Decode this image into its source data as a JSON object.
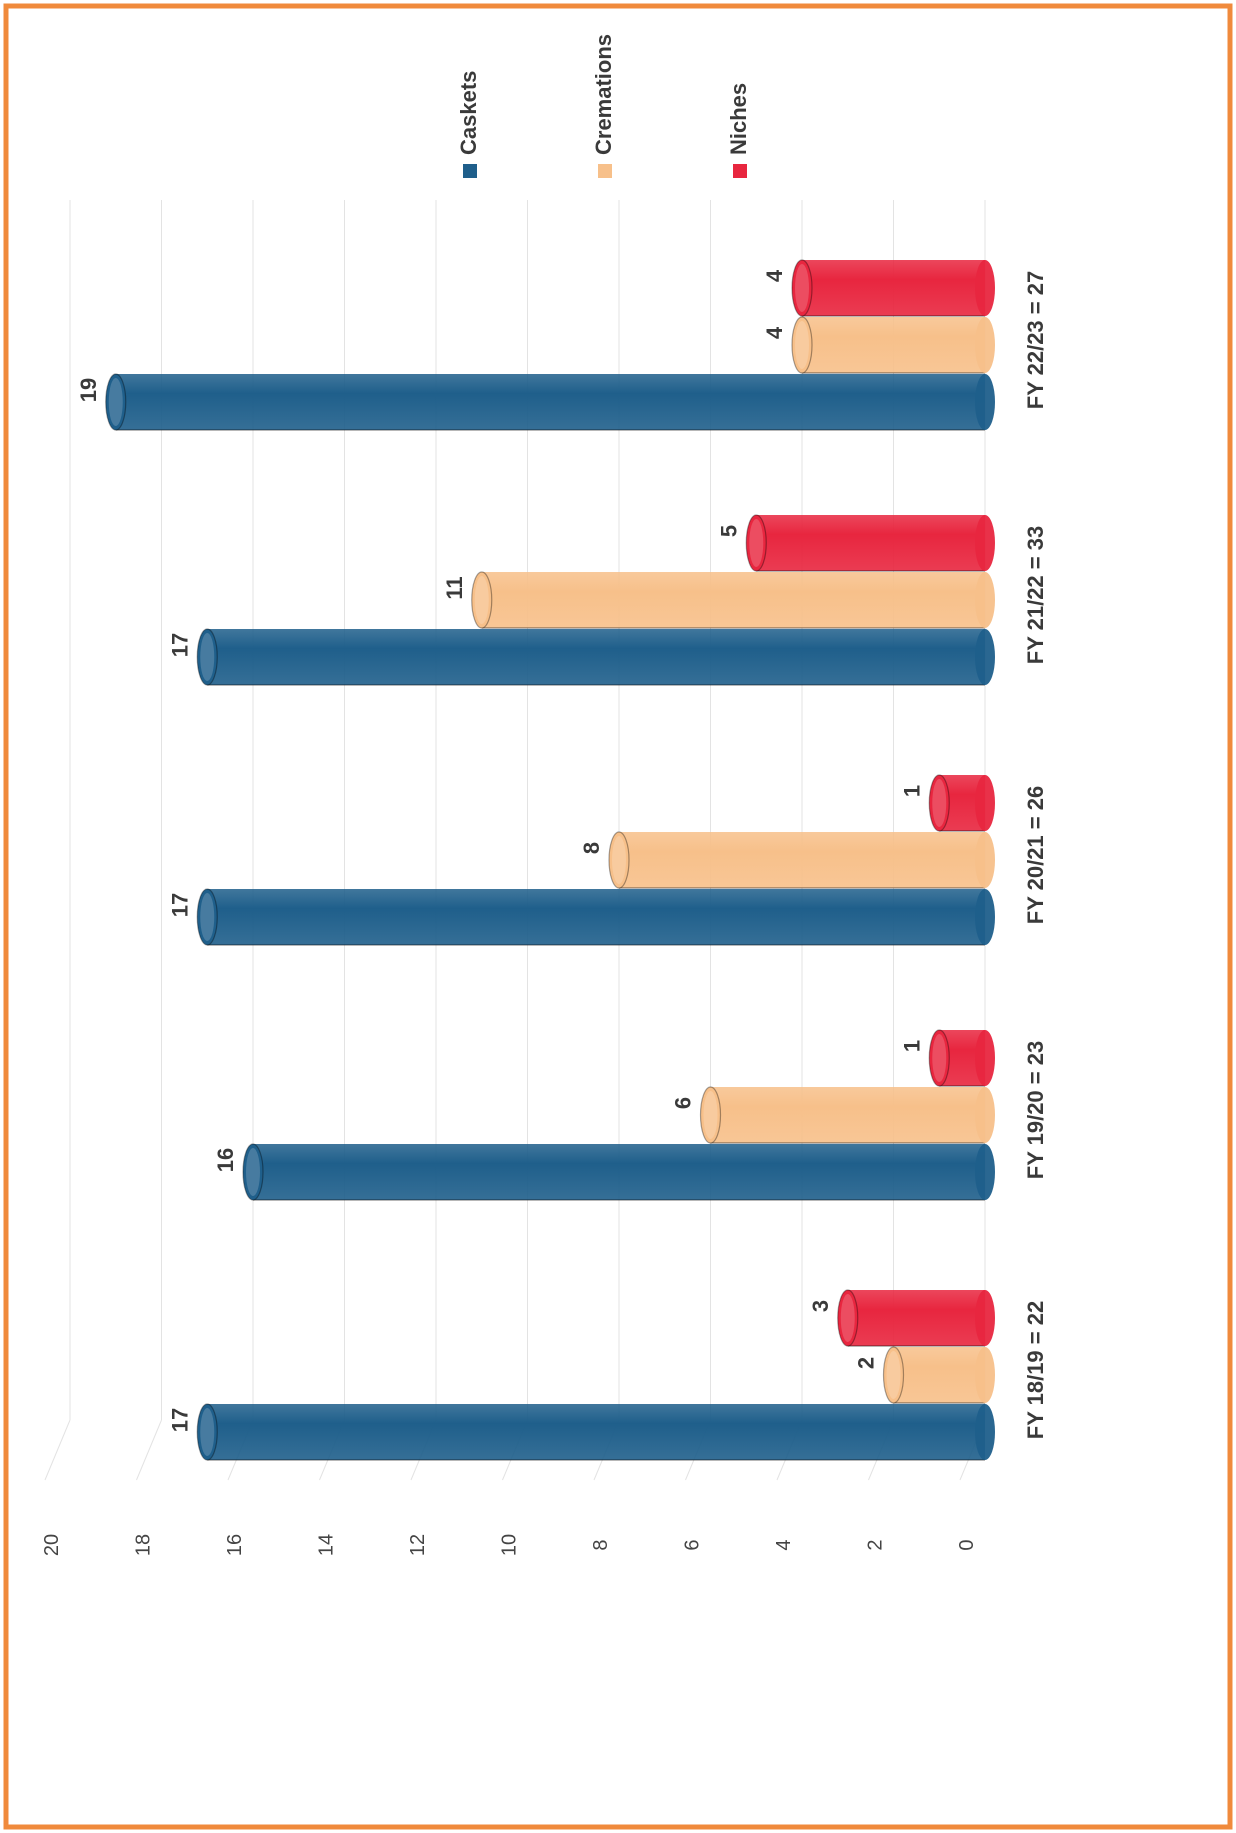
{
  "chart_data": {
    "type": "bar",
    "orientation": "horizontal-3d-cylinder",
    "categories": [
      "FY 18/19 = 22",
      "FY 19/20 = 23",
      "FY 20/21 = 26",
      "FY 21/22 = 33",
      "FY 22/23 = 27"
    ],
    "series": [
      {
        "name": "Caskets",
        "color": "#1f5f8b",
        "values": [
          17,
          16,
          17,
          17,
          19
        ]
      },
      {
        "name": "Cremations",
        "color": "#f7c08a",
        "values": [
          2,
          6,
          8,
          11,
          4
        ]
      },
      {
        "name": "Niches",
        "color": "#e8263f",
        "values": [
          3,
          1,
          1,
          5,
          4
        ]
      }
    ],
    "value_ticks": [
      "0",
      "2",
      "4",
      "6",
      "8",
      "10",
      "12",
      "14",
      "16",
      "18",
      "20"
    ],
    "ylim": [
      0,
      20
    ],
    "grid": true,
    "legend_position": "top-right",
    "border_color": "#f08a3c"
  }
}
